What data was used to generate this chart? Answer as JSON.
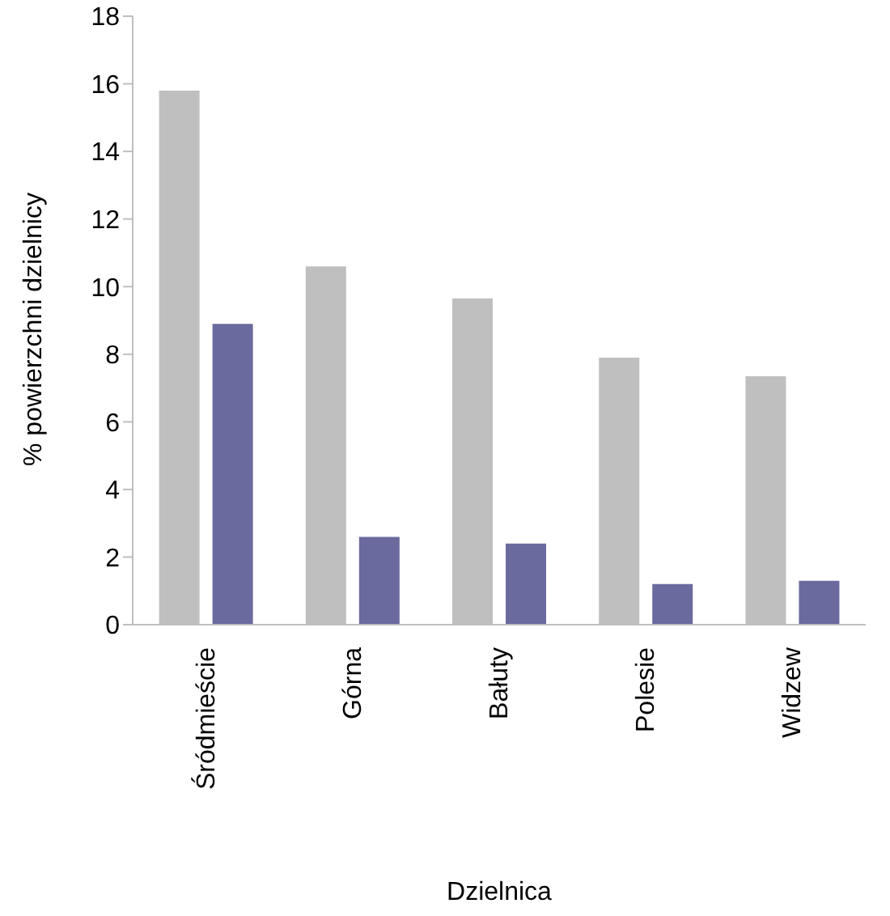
{
  "chart_data": {
    "type": "bar",
    "xlabel": "Dzielnica",
    "ylabel": "% powierzchni dzielnicy",
    "categories": [
      "Śródmieście",
      "Górna",
      "Bałuty",
      "Polesie",
      "Widzew"
    ],
    "series": [
      {
        "color": "#bfbfbf",
        "values": [
          15.8,
          10.6,
          9.65,
          7.9,
          7.35
        ]
      },
      {
        "color": "#6a6a9e",
        "values": [
          8.9,
          2.6,
          2.4,
          1.2,
          1.3
        ]
      }
    ],
    "ylim": [
      0,
      18
    ],
    "yticks": [
      0,
      2,
      4,
      6,
      8,
      10,
      12,
      14,
      16,
      18
    ],
    "grid": false,
    "legend": false
  }
}
